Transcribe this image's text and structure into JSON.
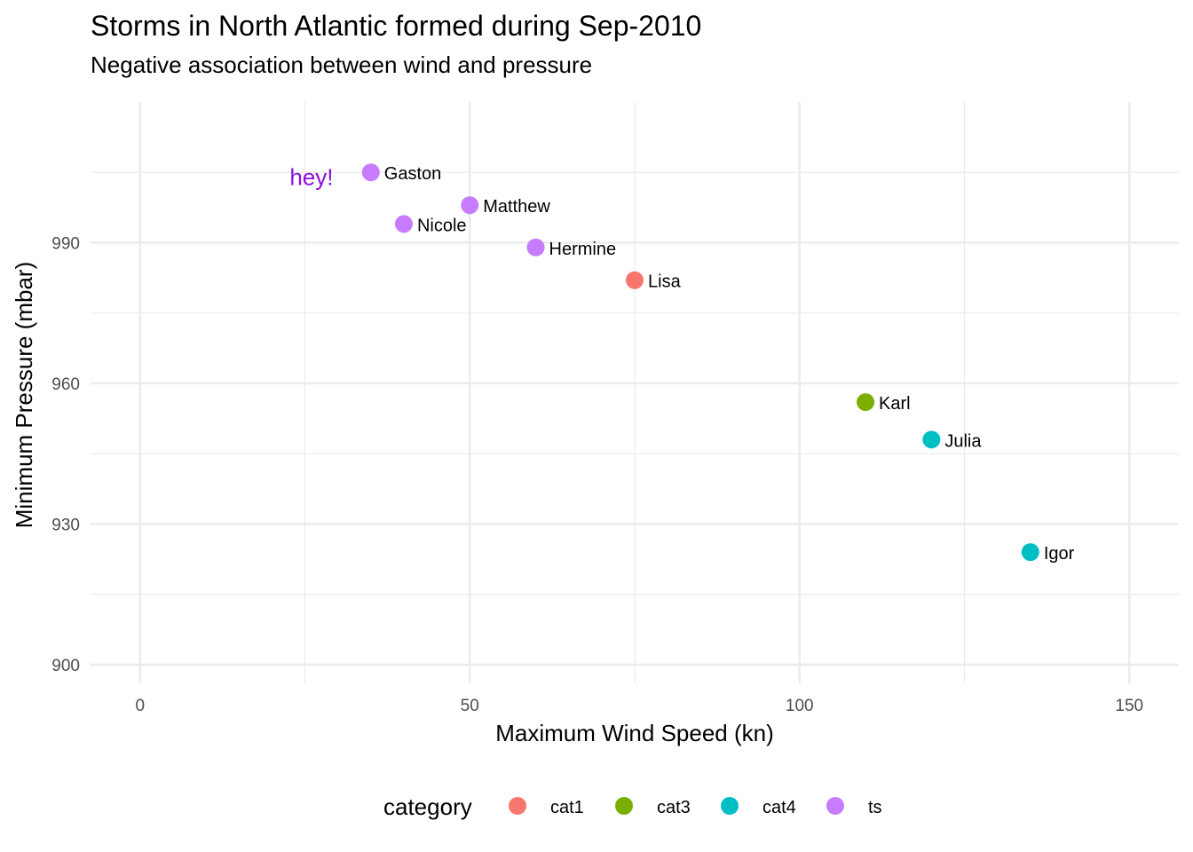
{
  "chart_data": {
    "type": "scatter",
    "title": "Storms in North Atlantic formed during Sep-2010",
    "subtitle": "Negative association between wind and pressure",
    "xlabel": "Maximum Wind Speed (kn)",
    "ylabel": "Minimum Pressure (mbar)",
    "xlim": [
      -7.5,
      157.5
    ],
    "ylim": [
      896,
      1020
    ],
    "x_ticks": [
      0,
      50,
      100,
      150
    ],
    "y_ticks": [
      900,
      930,
      960,
      990
    ],
    "grid": true,
    "legend": {
      "title": "category",
      "position": "bottom",
      "entries": [
        {
          "label": "cat1",
          "color": "#F8766D"
        },
        {
          "label": "cat3",
          "color": "#7CAE00"
        },
        {
          "label": "cat4",
          "color": "#00BFC4"
        },
        {
          "label": "ts",
          "color": "#C77CFF"
        }
      ]
    },
    "points": [
      {
        "name": "Gaston",
        "wind": 35,
        "pressure": 1005,
        "category": "ts"
      },
      {
        "name": "Matthew",
        "wind": 50,
        "pressure": 998,
        "category": "ts"
      },
      {
        "name": "Nicole",
        "wind": 40,
        "pressure": 994,
        "category": "ts"
      },
      {
        "name": "Hermine",
        "wind": 60,
        "pressure": 989,
        "category": "ts"
      },
      {
        "name": "Lisa",
        "wind": 75,
        "pressure": 982,
        "category": "cat1"
      },
      {
        "name": "Karl",
        "wind": 110,
        "pressure": 956,
        "category": "cat3"
      },
      {
        "name": "Julia",
        "wind": 120,
        "pressure": 948,
        "category": "cat4"
      },
      {
        "name": "Igor",
        "wind": 135,
        "pressure": 924,
        "category": "cat4"
      }
    ],
    "annotations": [
      {
        "text": "hey!",
        "x": 26,
        "y": 1004,
        "color": "#8B10E0"
      }
    ]
  }
}
